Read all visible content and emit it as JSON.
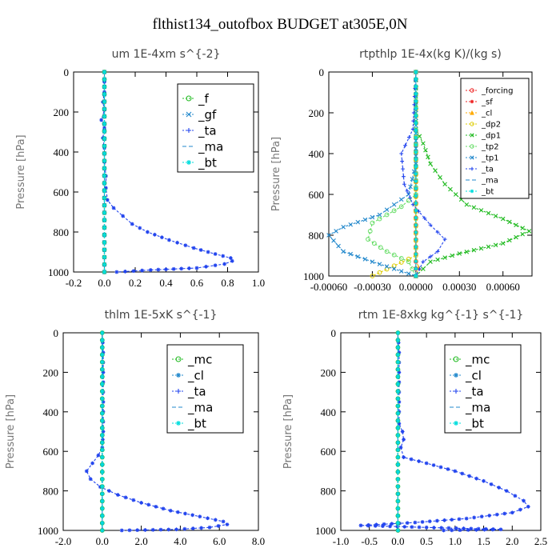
{
  "figure_title": "flthist134_outofbox  BUDGET at305E,0N",
  "colors": {
    "green": "#22bb22",
    "blue": "#2244ee",
    "cyan": "#00dddd",
    "teal": "#2288cc",
    "red": "#ee2222",
    "orange": "#ffaa00",
    "yellow": "#ddcc00",
    "ltgreen": "#66dd66"
  },
  "chart_data": [
    {
      "type": "line",
      "title": "um  1E-4xm s^{-2}",
      "ylabel": "Pressure [hPa]",
      "xlim": [
        -0.2,
        1.0
      ],
      "ylim": [
        1000,
        0
      ],
      "xticks": [
        -0.2,
        0.0,
        0.2,
        0.4,
        0.6,
        0.8,
        1.0
      ],
      "xticklabels": [
        "-0.2",
        "0.0",
        "0.2",
        "0.4",
        "0.6",
        "0.8",
        "1.0"
      ],
      "yticks": [
        0,
        200,
        400,
        600,
        800,
        1000
      ],
      "yticklabels": [
        "0",
        "200",
        "400",
        "600",
        "800",
        "1000"
      ],
      "legend_position": "top-right",
      "legend_size": "large",
      "series": [
        {
          "name": "_f",
          "color": "green",
          "marker": "o",
          "points": [
            [
              0.0,
              0
            ],
            [
              0.0,
              1000
            ]
          ]
        },
        {
          "name": "_gf",
          "color": "teal",
          "marker": "x",
          "points": [
            [
              0.0,
              0
            ],
            [
              0.0,
              1000
            ]
          ]
        },
        {
          "name": "_ta",
          "color": "blue",
          "marker": "+",
          "points": [
            [
              0.0,
              0
            ],
            [
              0.0,
              1000
            ]
          ]
        },
        {
          "name": "_ma",
          "color": "teal",
          "marker": "-",
          "points": [
            [
              0.0,
              0
            ],
            [
              0.0,
              1000
            ]
          ]
        },
        {
          "name": "_bt",
          "color": "cyan",
          "marker": "*",
          "points": [
            [
              0.0,
              0
            ],
            [
              0.0,
              1000
            ]
          ]
        },
        {
          "name": "",
          "color": "blue",
          "marker": "*",
          "points": [
            [
              0.0,
              0
            ],
            [
              0.0,
              100
            ],
            [
              -0.01,
              150
            ],
            [
              0.0,
              190
            ],
            [
              -0.02,
              240
            ],
            [
              0.0,
              280
            ],
            [
              -0.01,
              330
            ],
            [
              0.0,
              380
            ],
            [
              0.0,
              450
            ],
            [
              0.01,
              520
            ],
            [
              0.01,
              580
            ],
            [
              0.02,
              640
            ],
            [
              0.06,
              680
            ],
            [
              0.12,
              720
            ],
            [
              0.18,
              760
            ],
            [
              0.28,
              800
            ],
            [
              0.42,
              840
            ],
            [
              0.58,
              880
            ],
            [
              0.72,
              910
            ],
            [
              0.82,
              930
            ],
            [
              0.83,
              945
            ],
            [
              0.78,
              960
            ],
            [
              0.6,
              980
            ],
            [
              0.3,
              990
            ],
            [
              0.08,
              1000
            ]
          ]
        }
      ]
    },
    {
      "type": "line",
      "title": "rtpthlp  1E-4x(kg K)/(kg s)",
      "ylabel": "Pressure [hPa]",
      "xlim": [
        -0.0006,
        0.0008
      ],
      "ylim": [
        1000,
        0
      ],
      "xticks": [
        -0.0006,
        -0.0003,
        0.0,
        0.0003,
        0.0006
      ],
      "xticklabels": [
        "-0.00060",
        "-0.00030",
        "0.00000",
        "0.00030",
        "0.00060"
      ],
      "yticks": [
        0,
        200,
        400,
        600,
        800,
        1000
      ],
      "yticklabels": [
        "0",
        "200",
        "400",
        "600",
        "800",
        "1000"
      ],
      "legend_position": "top-right",
      "legend_size": "small",
      "series": [
        {
          "name": "_forcing",
          "color": "red",
          "marker": "o",
          "points": [
            [
              0.0,
              0
            ],
            [
              0.0,
              1000
            ]
          ]
        },
        {
          "name": "_sf",
          "color": "red",
          "marker": "*",
          "points": [
            [
              0.0,
              0
            ],
            [
              0.0,
              1000
            ]
          ]
        },
        {
          "name": "_cl",
          "color": "orange",
          "marker": "^",
          "points": [
            [
              0.0,
              0
            ],
            [
              0.0,
              920
            ],
            [
              2e-05,
              960
            ],
            [
              0.0,
              1000
            ]
          ]
        },
        {
          "name": "_dp2",
          "color": "yellow",
          "marker": "o",
          "points": [
            [
              0.0,
              0
            ],
            [
              0.0,
              900
            ],
            [
              -0.0003,
              1000
            ]
          ]
        },
        {
          "name": "_dp1",
          "color": "green",
          "marker": "x",
          "points": [
            [
              0.0,
              0
            ],
            [
              0.0,
              280
            ],
            [
              5e-05,
              350
            ],
            [
              0.0001,
              450
            ],
            [
              0.0002,
              550
            ],
            [
              0.00035,
              650
            ],
            [
              0.0006,
              720
            ],
            [
              0.00078,
              780
            ],
            [
              0.0006,
              840
            ],
            [
              0.0003,
              890
            ],
            [
              0.0001,
              930
            ],
            [
              0.0,
              1000
            ]
          ]
        },
        {
          "name": "_tp2",
          "color": "ltgreen",
          "marker": "o",
          "points": [
            [
              0.0,
              0
            ],
            [
              0.0,
              600
            ],
            [
              -0.0001,
              660
            ],
            [
              -0.0003,
              740
            ],
            [
              -0.00033,
              820
            ],
            [
              -0.0002,
              880
            ],
            [
              -5e-05,
              930
            ],
            [
              0.0,
              1000
            ]
          ]
        },
        {
          "name": "_tp1",
          "color": "teal",
          "marker": "x",
          "points": [
            [
              0.0,
              0
            ],
            [
              0.0,
              450
            ],
            [
              -5e-05,
              600
            ],
            [
              -0.00025,
              700
            ],
            [
              -0.0005,
              760
            ],
            [
              -0.0006,
              800
            ],
            [
              -0.0005,
              880
            ],
            [
              -0.0003,
              930
            ],
            [
              0.0,
              1000
            ]
          ]
        },
        {
          "name": "_ta",
          "color": "blue",
          "marker": "+",
          "points": [
            [
              0.0,
              0
            ],
            [
              -2e-05,
              280
            ],
            [
              -0.0001,
              400
            ],
            [
              -8e-05,
              550
            ],
            [
              -2e-05,
              650
            ],
            [
              0.0001,
              750
            ],
            [
              0.0002,
              820
            ],
            [
              0.00015,
              880
            ],
            [
              5e-05,
              930
            ],
            [
              0.0,
              1000
            ]
          ]
        },
        {
          "name": "_ma",
          "color": "teal",
          "marker": "-",
          "points": [
            [
              0.0,
              0
            ],
            [
              0.0,
              1000
            ]
          ]
        },
        {
          "name": "_bt",
          "color": "cyan",
          "marker": "*",
          "points": [
            [
              0.0,
              0
            ],
            [
              0.0,
              1000
            ]
          ]
        }
      ]
    },
    {
      "type": "line",
      "title": "thlm  1E-5xK s^{-1}",
      "ylabel": "Pressure [hPa]",
      "xlim": [
        -2.0,
        8.0
      ],
      "ylim": [
        1000,
        0
      ],
      "xticks": [
        -2.0,
        0.0,
        2.0,
        4.0,
        6.0,
        8.0
      ],
      "xticklabels": [
        "-2.0",
        "0.0",
        "2.0",
        "4.0",
        "6.0",
        "8.0"
      ],
      "yticks": [
        0,
        200,
        400,
        600,
        800,
        1000
      ],
      "yticklabels": [
        "0",
        "200",
        "400",
        "600",
        "800",
        "1000"
      ],
      "legend_position": "top-right",
      "legend_size": "large",
      "series": [
        {
          "name": "_mc",
          "color": "green",
          "marker": "o",
          "points": [
            [
              0.0,
              0
            ],
            [
              0.0,
              1000
            ]
          ]
        },
        {
          "name": "_cl",
          "color": "teal",
          "marker": "*",
          "points": [
            [
              0.0,
              0
            ],
            [
              0.0,
              1000
            ]
          ]
        },
        {
          "name": "_ta",
          "color": "blue",
          "marker": "+",
          "points": [
            [
              0.0,
              0
            ],
            [
              0.0,
              1000
            ]
          ]
        },
        {
          "name": "_ma",
          "color": "teal",
          "marker": "-",
          "points": [
            [
              0.0,
              0
            ],
            [
              0.0,
              1000
            ]
          ]
        },
        {
          "name": "_bt",
          "color": "cyan",
          "marker": "*",
          "points": [
            [
              0.0,
              0
            ],
            [
              0.0,
              1000
            ]
          ]
        },
        {
          "name": "",
          "color": "blue",
          "marker": "*",
          "points": [
            [
              0.0,
              0
            ],
            [
              0.05,
              100
            ],
            [
              0.05,
              200
            ],
            [
              0.05,
              300
            ],
            [
              0.05,
              400
            ],
            [
              0.05,
              500
            ],
            [
              0.0,
              580
            ],
            [
              -0.2,
              620
            ],
            [
              -0.5,
              660
            ],
            [
              -0.8,
              700
            ],
            [
              -0.6,
              740
            ],
            [
              -0.1,
              780
            ],
            [
              0.8,
              820
            ],
            [
              2.0,
              860
            ],
            [
              3.5,
              900
            ],
            [
              5.0,
              930
            ],
            [
              6.2,
              955
            ],
            [
              6.4,
              970
            ],
            [
              5.5,
              985
            ],
            [
              3.8,
              995
            ],
            [
              1.0,
              1000
            ]
          ]
        }
      ]
    },
    {
      "type": "line",
      "title": "rtm  1E-8xkg kg^{-1} s^{-1}",
      "ylabel": "Pressure [hPa]",
      "xlim": [
        -1.0,
        2.5
      ],
      "ylim": [
        1000,
        0
      ],
      "xticks": [
        -1.0,
        -0.5,
        0.0,
        0.5,
        1.0,
        1.5,
        2.0,
        2.5
      ],
      "xticklabels": [
        "-1.0",
        "-0.5",
        "0.0",
        "0.5",
        "1.0",
        "1.5",
        "2.0",
        "2.5"
      ],
      "yticks": [
        0,
        200,
        400,
        600,
        800,
        1000
      ],
      "yticklabels": [
        "0",
        "200",
        "400",
        "600",
        "800",
        "1000"
      ],
      "legend_position": "top-right",
      "legend_size": "large",
      "series": [
        {
          "name": "_mc",
          "color": "green",
          "marker": "o",
          "points": [
            [
              0.0,
              0
            ],
            [
              0.0,
              1000
            ]
          ]
        },
        {
          "name": "_cl",
          "color": "teal",
          "marker": "*",
          "points": [
            [
              0.0,
              0
            ],
            [
              0.0,
              1000
            ]
          ]
        },
        {
          "name": "_ta",
          "color": "blue",
          "marker": "+",
          "points": [
            [
              0.0,
              0
            ],
            [
              0.0,
              1000
            ]
          ]
        },
        {
          "name": "_ma",
          "color": "teal",
          "marker": "-",
          "points": [
            [
              0.0,
              0
            ],
            [
              0.0,
              1000
            ]
          ]
        },
        {
          "name": "_bt",
          "color": "cyan",
          "marker": "*",
          "points": [
            [
              0.0,
              0
            ],
            [
              0.0,
              1000
            ]
          ]
        },
        {
          "name": "",
          "color": "blue",
          "marker": "*",
          "points": [
            [
              0.0,
              0
            ],
            [
              0.02,
              100
            ],
            [
              0.02,
              200
            ],
            [
              0.02,
              300
            ],
            [
              0.02,
              400
            ],
            [
              0.02,
              460
            ],
            [
              0.08,
              500
            ],
            [
              0.1,
              540
            ],
            [
              0.05,
              580
            ],
            [
              0.1,
              630
            ],
            [
              0.5,
              660
            ],
            [
              1.0,
              700
            ],
            [
              1.5,
              750
            ],
            [
              1.9,
              800
            ],
            [
              2.2,
              850
            ],
            [
              2.28,
              880
            ],
            [
              2.0,
              910
            ],
            [
              1.2,
              940
            ],
            [
              0.3,
              960
            ],
            [
              -0.65,
              975
            ],
            [
              0.5,
              985
            ],
            [
              1.8,
              995
            ],
            [
              0.8,
              1000
            ]
          ]
        }
      ]
    }
  ]
}
